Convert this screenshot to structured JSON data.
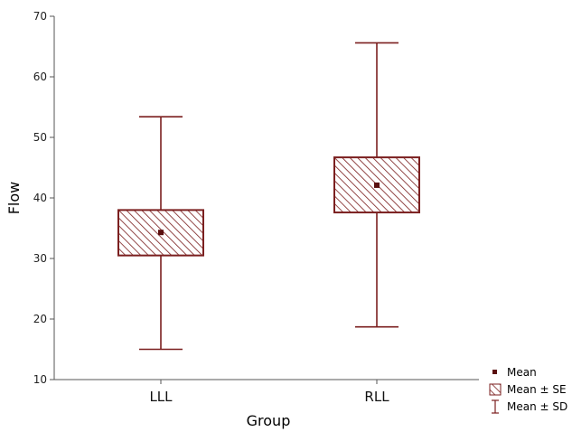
{
  "chart_data": {
    "type": "box",
    "xlabel": "Group",
    "ylabel": "Flow",
    "ylim": [
      10,
      70
    ],
    "yticks": [
      10,
      20,
      30,
      40,
      50,
      60,
      70
    ],
    "grid": false,
    "legend_position": "bottom-right",
    "categories": [
      "LLL",
      "RLL"
    ],
    "groups": [
      {
        "category": "LLL",
        "mean": 34.3,
        "se_low": 30.5,
        "se_high": 38.0,
        "sd_low": 15.0,
        "sd_high": 53.4
      },
      {
        "category": "RLL",
        "mean": 42.1,
        "se_low": 37.6,
        "se_high": 46.7,
        "sd_low": 18.7,
        "sd_high": 65.6
      }
    ],
    "legend": [
      {
        "key": "mean",
        "label": "Mean"
      },
      {
        "key": "se",
        "label": "Mean ± SE"
      },
      {
        "key": "sd",
        "label": "Mean ± SD"
      }
    ],
    "colors": {
      "series": "#7b1f1f",
      "axis": "#555555"
    }
  }
}
